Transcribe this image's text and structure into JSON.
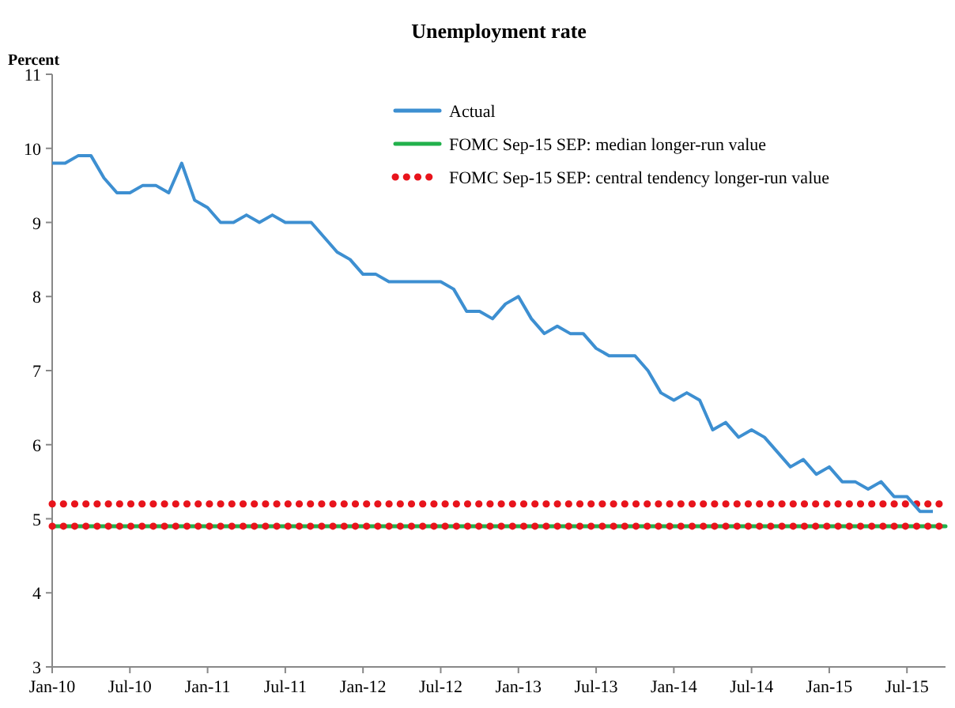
{
  "chart_data": {
    "type": "line",
    "title": "Unemployment rate",
    "ylabel": "Percent",
    "categories": [
      "Jan-10",
      null,
      null,
      null,
      null,
      null,
      "Jul-10",
      null,
      null,
      null,
      null,
      null,
      "Jan-11",
      null,
      null,
      null,
      null,
      null,
      "Jul-11",
      null,
      null,
      null,
      null,
      null,
      "Jan-12",
      null,
      null,
      null,
      null,
      null,
      "Jul-12",
      null,
      null,
      null,
      null,
      null,
      "Jan-13",
      null,
      null,
      null,
      null,
      null,
      "Jul-13",
      null,
      null,
      null,
      null,
      null,
      "Jan-14",
      null,
      null,
      null,
      null,
      null,
      "Jul-14",
      null,
      null,
      null,
      null,
      null,
      "Jan-15",
      null,
      null,
      null,
      null,
      null,
      "Jul-15",
      null,
      null
    ],
    "series": [
      {
        "name": "Actual",
        "color": "#3d8fd1",
        "values": [
          9.8,
          9.8,
          9.9,
          9.9,
          9.6,
          9.4,
          9.4,
          9.5,
          9.5,
          9.4,
          9.8,
          9.3,
          9.2,
          9.0,
          9.0,
          9.1,
          9.0,
          9.1,
          9.0,
          9.0,
          9.0,
          8.8,
          8.6,
          8.5,
          8.3,
          8.3,
          8.2,
          8.2,
          8.2,
          8.2,
          8.2,
          8.1,
          7.8,
          7.8,
          7.7,
          7.9,
          8.0,
          7.7,
          7.5,
          7.6,
          7.5,
          7.5,
          7.3,
          7.2,
          7.2,
          7.2,
          7.0,
          6.7,
          6.6,
          6.7,
          6.6,
          6.2,
          6.3,
          6.1,
          6.2,
          6.1,
          5.9,
          5.7,
          5.8,
          5.6,
          5.7,
          5.5,
          5.5,
          5.4,
          5.5,
          5.3,
          5.3,
          5.1,
          5.1
        ]
      }
    ],
    "ref_lines": [
      {
        "axis": "y",
        "value": 4.9,
        "label": "FOMC Sep-15 SEP: median longer-run value",
        "color": "#22b14c",
        "line_style": "solid"
      },
      {
        "axis": "y",
        "value": 5.2,
        "label": "FOMC Sep-15 SEP: central tendency longer-run value",
        "color": "#e8141c",
        "line_style": "dotted"
      },
      {
        "axis": "y",
        "value": 4.9,
        "label": null,
        "color": "#e8141c",
        "line_style": "dotted"
      }
    ],
    "ylim": [
      3,
      11
    ],
    "yticks": [
      3,
      4,
      5,
      6,
      7,
      8,
      9,
      10,
      11
    ],
    "legend": "top right",
    "grid": false
  }
}
